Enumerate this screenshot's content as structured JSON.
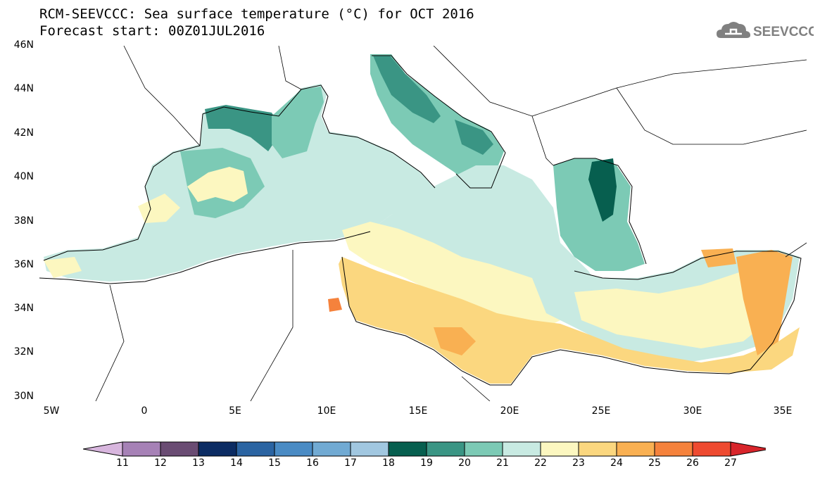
{
  "header": {
    "title_line1": "RCM-SEEVCCC: Sea surface temperature (°C) for OCT 2016",
    "title_line2": "Forecast start: 00Z01JUL2016",
    "logo_text": "SEEVCCC"
  },
  "map": {
    "lat_labels": [
      "46N",
      "44N",
      "42N",
      "40N",
      "38N",
      "36N",
      "34N",
      "32N",
      "30N"
    ],
    "lon_labels": [
      "5W",
      "0",
      "5E",
      "10E",
      "15E",
      "20E",
      "25E",
      "30E",
      "35E"
    ],
    "land_color": "#ffffff",
    "coastline_color": "#000000"
  },
  "colorbar": {
    "tick_labels": [
      "11",
      "12",
      "13",
      "14",
      "15",
      "16",
      "17",
      "18",
      "19",
      "20",
      "21",
      "22",
      "23",
      "24",
      "25",
      "26",
      "27"
    ],
    "colors": [
      "#d8b6de",
      "#a681b6",
      "#6a4c73",
      "#0c2c63",
      "#2b64a2",
      "#4a8bc4",
      "#71aad3",
      "#a1c7e0",
      "#075f4f",
      "#3a9584",
      "#7ccab5",
      "#c8eae2",
      "#fcf7c0",
      "#fbd77f",
      "#f9b052",
      "#f5823c",
      "#ee4a30",
      "#d8252b"
    ]
  }
}
